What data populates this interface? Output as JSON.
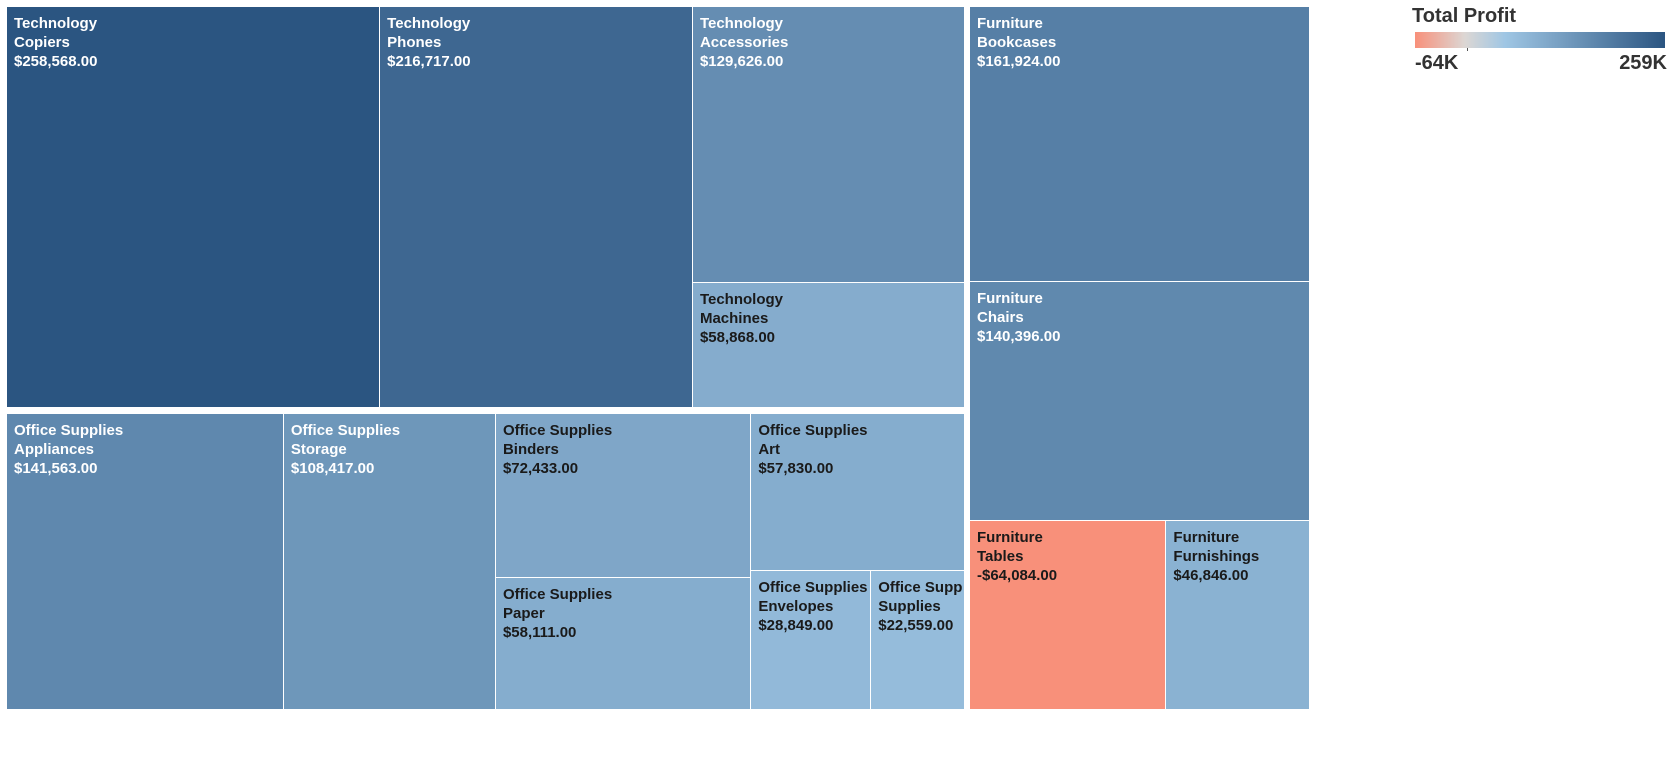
{
  "chart_data": {
    "type": "treemap",
    "measure": "Total Profit",
    "format": "currency",
    "color_range": {
      "min_label": "-64K",
      "max_label": "259K",
      "min": -64084,
      "max": 258568
    },
    "colors": {
      "negative": "#f8907a",
      "zero": "#dcd7d4",
      "low_positive": "#9fc6e4",
      "high_positive": "#2b5581"
    },
    "tiles": [
      {
        "category": "Technology",
        "subcategory": "Copiers",
        "label": "$258,568.00",
        "value": 258568
      },
      {
        "category": "Technology",
        "subcategory": "Phones",
        "label": "$216,717.00",
        "value": 216717
      },
      {
        "category": "Technology",
        "subcategory": "Accessories",
        "label": "$129,626.00",
        "value": 129626
      },
      {
        "category": "Technology",
        "subcategory": "Machines",
        "label": "$58,868.00",
        "value": 58868
      },
      {
        "category": "Furniture",
        "subcategory": "Bookcases",
        "label": "$161,924.00",
        "value": 161924
      },
      {
        "category": "Furniture",
        "subcategory": "Chairs",
        "label": "$140,396.00",
        "value": 140396
      },
      {
        "category": "Furniture",
        "subcategory": "Tables",
        "label": "-$64,084.00",
        "value": -64084
      },
      {
        "category": "Furniture",
        "subcategory": "Furnishings",
        "label": "$46,846.00",
        "value": 46846
      },
      {
        "category": "Office Supplies",
        "subcategory": "Appliances",
        "label": "$141,563.00",
        "value": 141563
      },
      {
        "category": "Office Supplies",
        "subcategory": "Storage",
        "label": "$108,417.00",
        "value": 108417
      },
      {
        "category": "Office Supplies",
        "subcategory": "Binders",
        "label": "$72,433.00",
        "value": 72433
      },
      {
        "category": "Office Supplies",
        "subcategory": "Paper",
        "label": "$58,111.00",
        "value": 58111
      },
      {
        "category": "Office Supplies",
        "subcategory": "Art",
        "label": "$57,830.00",
        "value": 57830
      },
      {
        "category": "Office Supplies",
        "subcategory": "Envelopes",
        "label": "$28,849.00",
        "value": 28849
      },
      {
        "category": "Office Supplies",
        "subcategory": "Supplies",
        "label": "$22,559.00",
        "value": 22559
      }
    ]
  }
}
